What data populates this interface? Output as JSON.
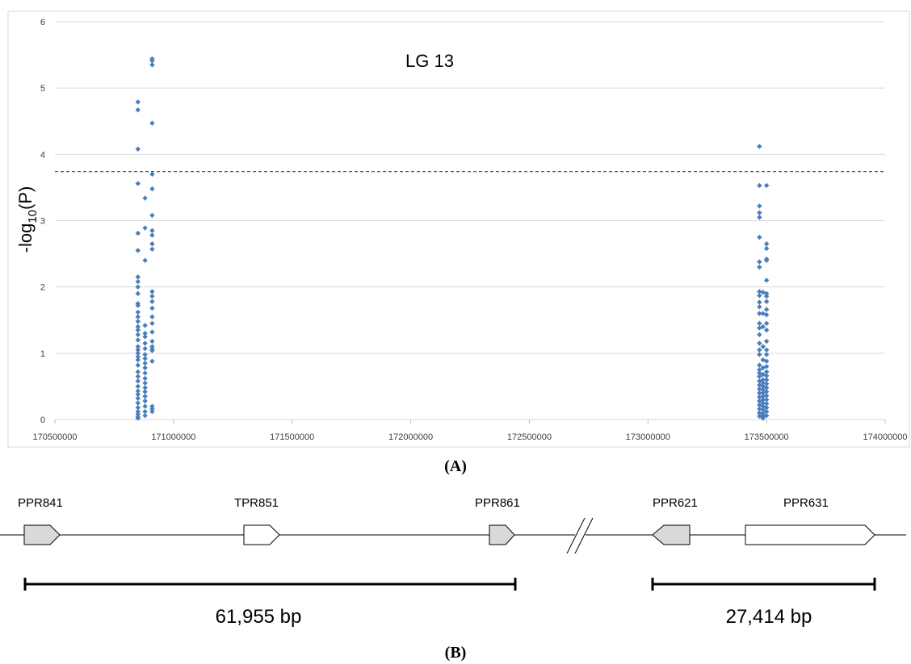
{
  "chart_data": {
    "type": "scatter",
    "title": "LG 13",
    "ylabel": {
      "prefix": "-log",
      "sub": "10",
      "suffix": "(P)"
    },
    "xlabel": "",
    "xlim": [
      170500000,
      174000000
    ],
    "ylim": [
      0,
      6
    ],
    "xticks": [
      "170500000",
      "171000000",
      "171500000",
      "172000000",
      "172500000",
      "173000000",
      "173500000",
      "174000000"
    ],
    "yticks": [
      "0",
      "1",
      "2",
      "3",
      "4",
      "5",
      "6"
    ],
    "threshold": 3.74,
    "grid": true,
    "marker_color": "#4a7ebb",
    "series": [
      {
        "clusters": [
          {
            "left_x": 170850000,
            "right_x": 170910000,
            "center_x": 170880000,
            "left_y": [
              4.79,
              4.67,
              4.08,
              3.56,
              2.81,
              2.55,
              2.15,
              2.08,
              2.0,
              1.9,
              1.75,
              1.72,
              1.62,
              1.55,
              1.48,
              1.4,
              1.35,
              1.28,
              1.2,
              1.1,
              1.05,
              1.0,
              0.95,
              0.9,
              0.82,
              0.72,
              0.65,
              0.58,
              0.5,
              0.43,
              0.38,
              0.32,
              0.25,
              0.18,
              0.12,
              0.08,
              0.04,
              0.02
            ],
            "right_y": [
              5.44,
              5.41,
              5.35,
              4.47,
              3.7,
              3.48,
              3.08,
              2.85,
              2.78,
              2.65,
              2.57,
              1.93,
              1.86,
              1.78,
              1.68,
              1.55,
              1.45,
              1.32,
              1.18,
              1.1,
              1.06,
              1.04,
              0.88,
              0.2,
              0.16,
              0.12
            ],
            "center_y": [
              3.34,
              2.89,
              2.4,
              1.42,
              1.3,
              1.25,
              1.15,
              1.07,
              0.98,
              0.92,
              0.85,
              0.78,
              0.7,
              0.62,
              0.55,
              0.48,
              0.42,
              0.35,
              0.28,
              0.2,
              0.12,
              0.06
            ]
          },
          {
            "left_x": 173470000,
            "right_x": 173500000,
            "center_x": 173485000,
            "left_y": [
              4.12,
              3.53,
              3.22,
              3.12,
              3.05,
              2.75,
              2.38,
              2.3,
              1.93,
              1.87,
              1.77,
              1.7,
              1.6,
              1.45,
              1.38,
              1.28,
              1.15,
              1.05,
              0.98,
              0.82,
              0.75,
              0.7,
              0.65,
              0.58,
              0.52,
              0.46,
              0.4,
              0.34,
              0.28,
              0.22,
              0.16,
              0.1,
              0.05
            ],
            "right_y": [
              3.53,
              2.65,
              2.58,
              2.42,
              2.4,
              2.1,
              1.9,
              1.86,
              1.78,
              1.66,
              1.58,
              1.45,
              1.35,
              1.18,
              1.05,
              0.98,
              0.88,
              0.8,
              0.72,
              0.66,
              0.6,
              0.54,
              0.48,
              0.42,
              0.36,
              0.3,
              0.24,
              0.18,
              0.12,
              0.06
            ],
            "center_y": [
              1.92,
              1.6,
              1.4,
              1.1,
              0.9,
              0.78,
              0.68,
              0.6,
              0.55,
              0.5,
              0.45,
              0.4,
              0.35,
              0.3,
              0.25,
              0.2,
              0.15,
              0.1,
              0.07,
              0.04,
              0.02
            ]
          }
        ]
      }
    ]
  },
  "panel_a_label": "(A)",
  "panel_b_label": "(B)",
  "genes": [
    {
      "name": "PPR841",
      "direction": "right",
      "fill": "#d9d9d9"
    },
    {
      "name": "TPR851",
      "direction": "right",
      "fill": "#ffffff"
    },
    {
      "name": "PPR861",
      "direction": "right",
      "fill": "#d9d9d9"
    },
    {
      "name": "PPR621",
      "direction": "left",
      "fill": "#d9d9d9"
    },
    {
      "name": "PPR631",
      "direction": "right",
      "fill": "#ffffff"
    }
  ],
  "scale_bars": [
    {
      "label": "61,955 bp"
    },
    {
      "label": "27,414 bp"
    }
  ]
}
